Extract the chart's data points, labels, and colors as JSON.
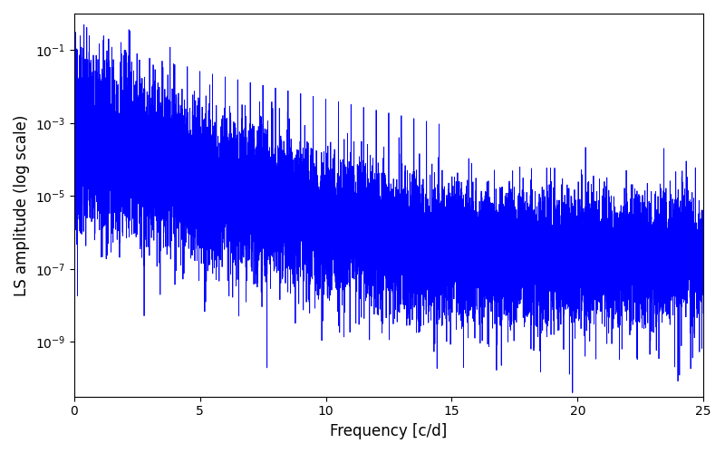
{
  "xlabel": "Frequency [c/d]",
  "ylabel": "LS amplitude (log scale)",
  "title": "",
  "line_color": "#0000ff",
  "line_width": 0.6,
  "xlim": [
    0,
    25
  ],
  "ylim_log": [
    -10.5,
    0
  ],
  "freq_max": 25.0,
  "n_points": 15000,
  "seed": 1234,
  "background_color": "#ffffff",
  "figsize": [
    8.0,
    5.0
  ],
  "dpi": 100,
  "xticks": [
    0,
    5,
    10,
    15,
    20,
    25
  ]
}
